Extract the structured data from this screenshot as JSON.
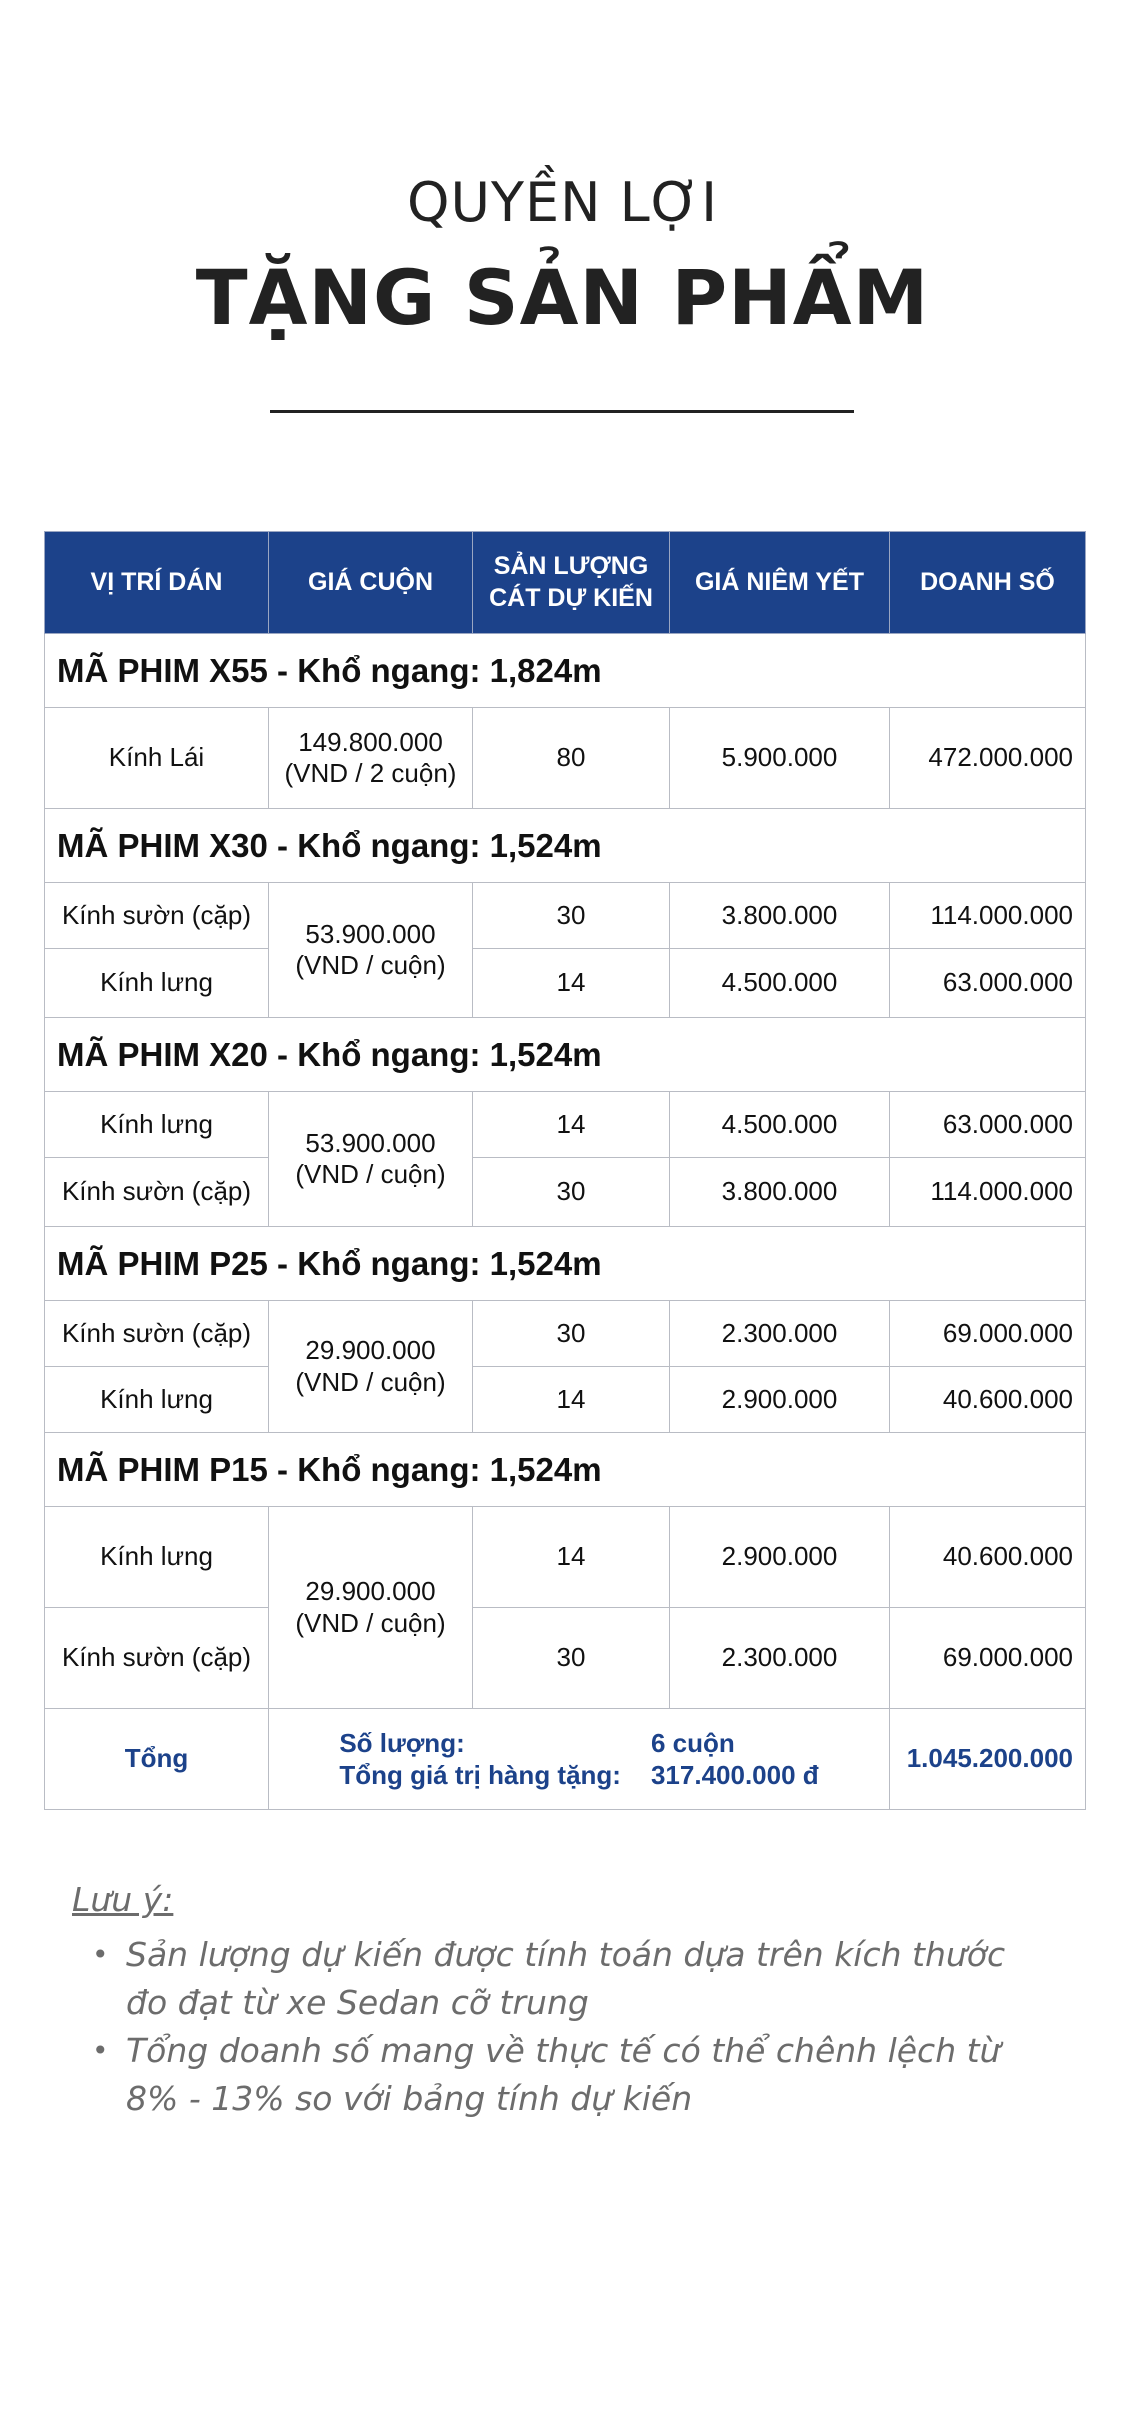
{
  "header": {
    "subtitle": "QUYỀN LỢI",
    "title": "TẶNG SẢN PHẨM"
  },
  "table": {
    "columns": [
      "VỊ TRÍ DÁN",
      "GIÁ CUỘN",
      "SẢN LƯỢNG\nCÁT DỰ KIẾN",
      "GIÁ NIÊM YẾT",
      "DOANH SỐ"
    ],
    "groups": [
      {
        "title": "MÃ PHIM X55 - Khổ ngang: 1,824m",
        "roll_price": "149.800.000\n(VND / 2 cuộn)",
        "rows": [
          {
            "position": "Kính Lái",
            "quantity": "80",
            "list_price": "5.900.000",
            "revenue": "472.000.000"
          }
        ]
      },
      {
        "title": "MÃ PHIM X30 - Khổ ngang: 1,524m",
        "roll_price": "53.900.000\n(VND / cuộn)",
        "rows": [
          {
            "position": "Kính sườn (cặp)",
            "quantity": "30",
            "list_price": "3.800.000",
            "revenue": "114.000.000"
          },
          {
            "position": "Kính lưng",
            "quantity": "14",
            "list_price": "4.500.000",
            "revenue": "63.000.000"
          }
        ]
      },
      {
        "title": "MÃ PHIM X20 - Khổ ngang: 1,524m",
        "roll_price": "53.900.000\n(VND / cuộn)",
        "rows": [
          {
            "position": "Kính lưng",
            "quantity": "14",
            "list_price": "4.500.000",
            "revenue": "63.000.000"
          },
          {
            "position": "Kính sườn (cặp)",
            "quantity": "30",
            "list_price": "3.800.000",
            "revenue": "114.000.000"
          }
        ]
      },
      {
        "title": "MÃ PHIM P25 - Khổ ngang: 1,524m",
        "roll_price": "29.900.000\n(VND / cuộn)",
        "rows": [
          {
            "position": "Kính sườn (cặp)",
            "quantity": "30",
            "list_price": "2.300.000",
            "revenue": "69.000.000"
          },
          {
            "position": "Kính lưng",
            "quantity": "14",
            "list_price": "2.900.000",
            "revenue": "40.600.000"
          }
        ]
      },
      {
        "title": "MÃ PHIM P15 - Khổ ngang: 1,524m",
        "roll_price": "29.900.000\n(VND / cuộn)",
        "rows": [
          {
            "position": "Kính lưng",
            "quantity": "14",
            "list_price": "2.900.000",
            "revenue": "40.600.000"
          },
          {
            "position": "Kính sườn (cặp)",
            "quantity": "30",
            "list_price": "2.300.000",
            "revenue": "69.000.000"
          }
        ]
      }
    ],
    "total": {
      "label": "Tổng",
      "quantity_label": "Số lượng:",
      "quantity_value": "6 cuộn",
      "gift_value_label": "Tổng giá trị hàng tặng:",
      "gift_value": "317.400.000 đ",
      "revenue": "1.045.200.000"
    }
  },
  "notes": {
    "title": "Lưu ý:",
    "items": [
      "Sản lượng dự kiến được tính toán dựa trên kích thước đo đạt từ xe Sedan cỡ trung",
      "Tổng doanh số mang về thực tế có thể chênh lệch từ 8% - 13% so với bảng tính dự kiến"
    ]
  },
  "colors": {
    "header_blue": "#1c428a",
    "text_dark": "#222222",
    "notes_gray": "#6c6c6c",
    "border": "#b9bcc4"
  }
}
